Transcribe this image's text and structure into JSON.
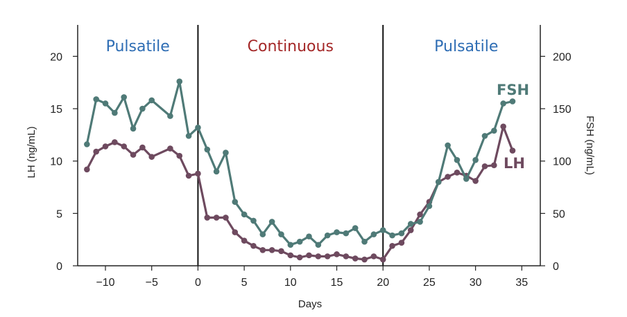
{
  "chart_data": {
    "type": "line",
    "xlabel": "Days",
    "ylabel_left": "LH (ng/mL)",
    "ylabel_right": "FSH (ng/mL)",
    "xlim": [
      -13,
      37
    ],
    "ylim_left": [
      0,
      23
    ],
    "ylim_right": [
      0,
      230
    ],
    "x_ticks": [
      "−10",
      "−5",
      "0",
      "5",
      "10",
      "15",
      "20",
      "25",
      "30",
      "35"
    ],
    "x_tick_values": [
      -10,
      -5,
      0,
      5,
      10,
      15,
      20,
      25,
      30,
      35
    ],
    "y_left_ticks": [
      "0",
      "5",
      "10",
      "15",
      "20"
    ],
    "y_left_tick_values": [
      0,
      5,
      10,
      15,
      20
    ],
    "y_right_ticks": [
      "0",
      "50",
      "100",
      "150",
      "200"
    ],
    "y_right_tick_values": [
      0,
      50,
      100,
      150,
      200
    ],
    "phase_boundaries": [
      0,
      20
    ],
    "phases": [
      {
        "label": "Pulsatile",
        "x_center": -6.5,
        "color": "#2e6db4"
      },
      {
        "label": "Continuous",
        "x_center": 10,
        "color": "#a42828"
      },
      {
        "label": "Pulsatile",
        "x_center": 29,
        "color": "#2e6db4"
      }
    ],
    "grid": false,
    "series": [
      {
        "name": "FSH",
        "axis": "right",
        "color": "#4f7a77",
        "x": [
          -12,
          -11,
          -10,
          -9,
          -8,
          -7,
          -6,
          -5,
          -3,
          -2,
          -1,
          0,
          1,
          2,
          3,
          4,
          5,
          6,
          7,
          8,
          9,
          10,
          11,
          12,
          13,
          14,
          15,
          16,
          17,
          18,
          19,
          20,
          21,
          22,
          23,
          24,
          25,
          26,
          27,
          28,
          29,
          30,
          31,
          32,
          33,
          34
        ],
        "values": [
          116,
          159,
          155,
          146,
          161,
          131,
          150,
          158,
          143,
          176,
          124,
          132,
          111,
          90,
          108,
          61,
          49,
          43,
          30,
          42,
          30,
          20,
          23,
          28,
          20,
          29,
          32,
          31,
          36,
          23,
          30,
          34,
          29,
          31,
          40,
          42,
          57,
          80,
          115,
          101,
          83,
          101,
          124,
          129,
          155,
          157
        ]
      },
      {
        "name": "LH",
        "axis": "left",
        "color": "#6e4a5f",
        "x": [
          -12,
          -11,
          -10,
          -9,
          -8,
          -7,
          -6,
          -5,
          -3,
          -2,
          -1,
          0,
          1,
          2,
          3,
          4,
          5,
          6,
          7,
          8,
          9,
          10,
          11,
          12,
          13,
          14,
          15,
          16,
          17,
          18,
          19,
          20,
          21,
          22,
          23,
          24,
          25,
          26,
          27,
          28,
          29,
          30,
          31,
          32,
          33,
          34
        ],
        "values": [
          9.2,
          10.9,
          11.4,
          11.8,
          11.4,
          10.6,
          11.3,
          10.4,
          11.2,
          10.5,
          8.6,
          8.8,
          4.6,
          4.6,
          4.6,
          3.2,
          2.4,
          1.9,
          1.5,
          1.5,
          1.4,
          1.0,
          0.8,
          1.0,
          0.9,
          0.9,
          1.1,
          0.9,
          0.7,
          0.6,
          0.9,
          0.6,
          1.9,
          2.2,
          3.4,
          4.9,
          6.1,
          8.0,
          8.5,
          8.9,
          8.6,
          8.1,
          9.5,
          9.6,
          13.3,
          11.0
        ]
      }
    ]
  }
}
